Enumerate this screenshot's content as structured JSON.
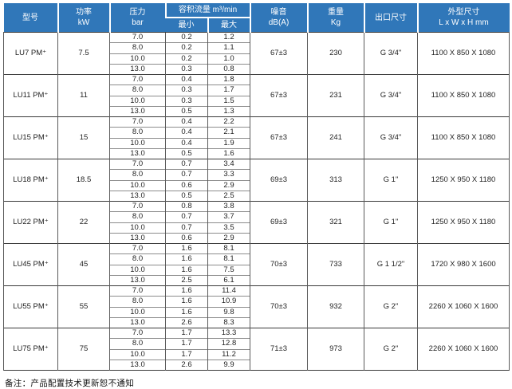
{
  "table": {
    "headers": {
      "model": "型号",
      "power": "功率\nkW",
      "pressure": "压力\nbar",
      "flow": "容积流量  m³/min",
      "flow_min": "最小",
      "flow_max": "最大",
      "noise": "噪音\ndB(A)",
      "weight": "重量\nKg",
      "outlet": "出口尺寸",
      "dims": "外型尺寸\nL x W x H mm"
    },
    "rows": [
      {
        "model": "LU7 PM⁺",
        "power": "7.5",
        "flows": [
          [
            "7.0",
            "0.2",
            "1.2"
          ],
          [
            "8.0",
            "0.2",
            "1.1"
          ],
          [
            "10.0",
            "0.2",
            "1.0"
          ],
          [
            "13.0",
            "0.3",
            "0.8"
          ]
        ],
        "noise": "67±3",
        "weight": "230",
        "outlet": "G 3/4\"",
        "dims": "1100 X 850 X 1080"
      },
      {
        "model": "LU11 PM⁺",
        "power": "11",
        "flows": [
          [
            "7.0",
            "0.4",
            "1.8"
          ],
          [
            "8.0",
            "0.3",
            "1.7"
          ],
          [
            "10.0",
            "0.3",
            "1.5"
          ],
          [
            "13.0",
            "0.5",
            "1.3"
          ]
        ],
        "noise": "67±3",
        "weight": "231",
        "outlet": "G 3/4\"",
        "dims": "1100 X 850 X 1080"
      },
      {
        "model": "LU15 PM⁺",
        "power": "15",
        "flows": [
          [
            "7.0",
            "0.4",
            "2.2"
          ],
          [
            "8.0",
            "0.4",
            "2.1"
          ],
          [
            "10.0",
            "0.4",
            "1.9"
          ],
          [
            "13.0",
            "0.5",
            "1.6"
          ]
        ],
        "noise": "67±3",
        "weight": "241",
        "outlet": "G 3/4\"",
        "dims": "1100 X 850 X 1080"
      },
      {
        "model": "LU18 PM⁺",
        "power": "18.5",
        "flows": [
          [
            "7.0",
            "0.7",
            "3.4"
          ],
          [
            "8.0",
            "0.7",
            "3.3"
          ],
          [
            "10.0",
            "0.6",
            "2.9"
          ],
          [
            "13.0",
            "0.5",
            "2.5"
          ]
        ],
        "noise": "69±3",
        "weight": "313",
        "outlet": "G 1\"",
        "dims": "1250 X 950 X 1180"
      },
      {
        "model": "LU22 PM⁺",
        "power": "22",
        "flows": [
          [
            "7.0",
            "0.8",
            "3.8"
          ],
          [
            "8.0",
            "0.7",
            "3.7"
          ],
          [
            "10.0",
            "0.7",
            "3.5"
          ],
          [
            "13.0",
            "0.6",
            "2.9"
          ]
        ],
        "noise": "69±3",
        "weight": "321",
        "outlet": "G 1\"",
        "dims": "1250 X 950 X 1180"
      },
      {
        "model": "LU45 PM⁺",
        "power": "45",
        "flows": [
          [
            "7.0",
            "1.6",
            "8.1"
          ],
          [
            "8.0",
            "1.6",
            "8.1"
          ],
          [
            "10.0",
            "1.6",
            "7.5"
          ],
          [
            "13.0",
            "2.5",
            "6.1"
          ]
        ],
        "noise": "70±3",
        "weight": "733",
        "outlet": "G 1 1/2\"",
        "dims": "1720 X 980 X 1600"
      },
      {
        "model": "LU55 PM⁺",
        "power": "55",
        "flows": [
          [
            "7.0",
            "1.6",
            "11.4"
          ],
          [
            "8.0",
            "1.6",
            "10.9"
          ],
          [
            "10.0",
            "1.6",
            "9.8"
          ],
          [
            "13.0",
            "2.6",
            "8.3"
          ]
        ],
        "noise": "70±3",
        "weight": "932",
        "outlet": "G 2\"",
        "dims": "2260 X 1060 X 1600"
      },
      {
        "model": "LU75 PM⁺",
        "power": "75",
        "flows": [
          [
            "7.0",
            "1.7",
            "13.3"
          ],
          [
            "8.0",
            "1.7",
            "12.8"
          ],
          [
            "10.0",
            "1.7",
            "11.2"
          ],
          [
            "13.0",
            "2.6",
            "9.9"
          ]
        ],
        "noise": "71±3",
        "weight": "973",
        "outlet": "G 2\"",
        "dims": "2260 X 1060 X 1600"
      }
    ]
  },
  "footer": {
    "note": "备注：产品配置技术更新恕不通知"
  },
  "colors": {
    "header_blue": "#3077b9",
    "grid_dark": "#3a3a3a",
    "grid_light": "#8c8c8c"
  }
}
